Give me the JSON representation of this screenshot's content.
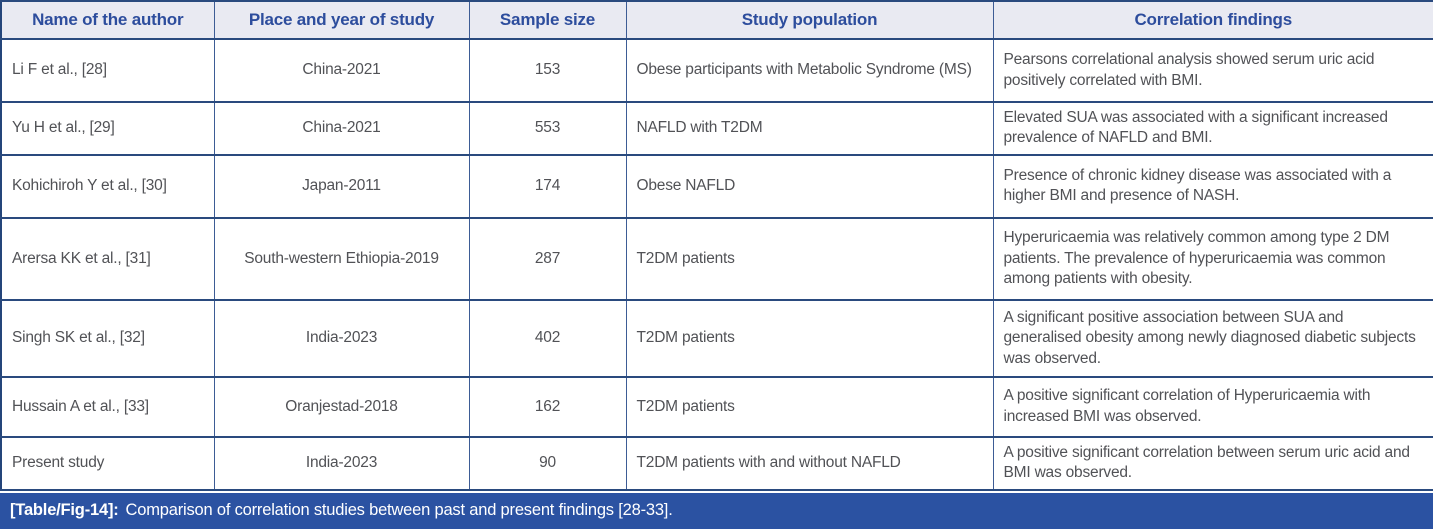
{
  "table": {
    "columns": [
      {
        "label": "Name of the author"
      },
      {
        "label": "Place and year of study"
      },
      {
        "label": "Sample size"
      },
      {
        "label": "Study population"
      },
      {
        "label": "Correlation findings"
      }
    ],
    "rows": [
      {
        "author": "Li F et al., [28]",
        "place": "China-2021",
        "sample": "153",
        "population": "Obese participants with Metabolic Syndrome (MS)",
        "findings": "Pearsons correlational analysis showed serum uric acid positively correlated with BMI."
      },
      {
        "author": "Yu H et al., [29]",
        "place": "China-2021",
        "sample": "553",
        "population": "NAFLD with T2DM",
        "findings": "Elevated SUA was associated with a significant increased prevalence of NAFLD and BMI."
      },
      {
        "author": "Kohichiroh Y et al., [30]",
        "place": "Japan-2011",
        "sample": "174",
        "population": "Obese NAFLD",
        "findings": "Presence of chronic kidney disease was associated with a higher BMI and presence of NASH."
      },
      {
        "author": "Arersa KK et al., [31]",
        "place": "South-western Ethiopia-2019",
        "sample": "287",
        "population": "T2DM patients",
        "findings": "Hyperuricaemia was relatively common among type 2 DM patients. The prevalence of hyperuricaemia was common among patients with obesity."
      },
      {
        "author": "Singh SK et al., [32]",
        "place": "India-2023",
        "sample": "402",
        "population": "T2DM patients",
        "findings": "A significant positive association between SUA and generalised obesity among newly diagnosed diabetic subjects was observed."
      },
      {
        "author": "Hussain A et al., [33]",
        "place": "Oranjestad-2018",
        "sample": "162",
        "population": "T2DM patients",
        "findings": "A positive significant correlation of Hyperuricaemia with increased BMI was observed."
      },
      {
        "author": "Present study",
        "place": "India-2023",
        "sample": "90",
        "population": "T2DM patients with and without NAFLD",
        "findings": "A positive significant correlation between serum uric acid and BMI was observed."
      }
    ]
  },
  "caption": {
    "label": "[Table/Fig-14]:",
    "text": "Comparison of correlation studies between past and present findings [28-33]."
  },
  "colors": {
    "header_bg": "#e9eaf2",
    "header_text": "#2d4d9d",
    "border": "#2a4a7e",
    "body_text": "#515256",
    "caption_bg": "#2b52a2",
    "caption_text": "#ffffff"
  }
}
